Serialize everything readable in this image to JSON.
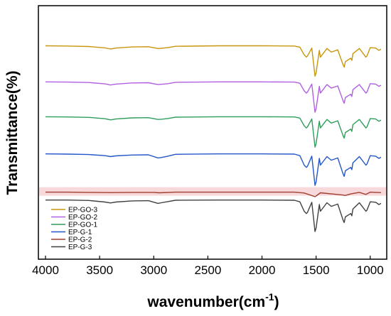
{
  "chart_data": {
    "type": "line",
    "title": "",
    "xlabel": "wavenumber(cm",
    "xlabel_sup": "-1",
    "xlabel_close": ")",
    "ylabel": "Transmittance(%)",
    "xlim": [
      4000,
      900
    ],
    "x_reversed": true,
    "y_ticks_shown": false,
    "x_ticks": [
      "4000",
      "3500",
      "3000",
      "2500",
      "2000",
      "1500",
      "1000"
    ],
    "y_unit": "offset transmittance (a.u.)",
    "ylim": [
      0,
      100
    ],
    "legend_position": "bottom-left",
    "grid": false,
    "series": [
      {
        "name": "EP-GO-3",
        "color": "#C8960C",
        "x": [
          4000,
          3800,
          3600,
          3450,
          3400,
          3350,
          3200,
          3050,
          2960,
          2930,
          2870,
          2800,
          2400,
          2000,
          1700,
          1650,
          1610,
          1590,
          1580,
          1540,
          1510,
          1500,
          1470,
          1460,
          1400,
          1360,
          1300,
          1250,
          1240,
          1230,
          1180,
          1170,
          1160,
          1100,
          1040,
          1030,
          1000,
          950,
          920,
          900
        ],
        "y": [
          91.0,
          90.9,
          90.7,
          90.1,
          89.6,
          90.0,
          90.5,
          90.6,
          89.8,
          89.9,
          90.2,
          90.8,
          91.0,
          91.0,
          90.9,
          90.4,
          87.0,
          86.0,
          86.5,
          90.0,
          77.5,
          79.0,
          89.0,
          86.0,
          89.8,
          88.2,
          89.2,
          82.5,
          81.5,
          84.0,
          85.5,
          84.5,
          87.5,
          89.8,
          86.0,
          86.5,
          90.2,
          90.0,
          89.0,
          89.5
        ]
      },
      {
        "name": "EP-GO-2",
        "color": "#B060E0",
        "x": [
          4000,
          3800,
          3600,
          3450,
          3400,
          3350,
          3200,
          3050,
          2960,
          2930,
          2870,
          2800,
          2400,
          2000,
          1700,
          1650,
          1610,
          1590,
          1580,
          1540,
          1510,
          1500,
          1470,
          1460,
          1400,
          1360,
          1300,
          1250,
          1240,
          1230,
          1180,
          1170,
          1160,
          1100,
          1040,
          1030,
          1000,
          950,
          920,
          900
        ],
        "y": [
          75.0,
          74.9,
          74.7,
          74.1,
          73.6,
          74.0,
          74.5,
          74.6,
          73.8,
          73.9,
          74.2,
          74.8,
          75.0,
          75.0,
          74.9,
          74.4,
          71.0,
          70.0,
          70.5,
          74.0,
          61.5,
          63.0,
          73.0,
          70.0,
          73.8,
          72.2,
          73.2,
          66.5,
          65.5,
          68.0,
          69.5,
          68.5,
          71.5,
          73.8,
          70.0,
          70.5,
          74.2,
          74.0,
          73.0,
          73.5
        ]
      },
      {
        "name": "EP-GO-1",
        "color": "#2E9E5B",
        "x": [
          4000,
          3800,
          3600,
          3450,
          3400,
          3350,
          3200,
          3050,
          2960,
          2930,
          2870,
          2800,
          2400,
          2000,
          1700,
          1650,
          1610,
          1590,
          1580,
          1540,
          1510,
          1500,
          1470,
          1460,
          1400,
          1360,
          1300,
          1250,
          1240,
          1230,
          1180,
          1170,
          1160,
          1100,
          1040,
          1030,
          1000,
          950,
          920,
          900
        ],
        "y": [
          59.5,
          59.4,
          59.2,
          58.6,
          58.1,
          58.5,
          59.0,
          59.1,
          58.3,
          58.4,
          58.7,
          59.3,
          59.5,
          59.5,
          59.4,
          58.9,
          55.5,
          54.5,
          55.0,
          58.5,
          46.0,
          47.5,
          57.5,
          54.5,
          58.3,
          56.7,
          57.7,
          51.0,
          50.0,
          52.5,
          54.0,
          53.0,
          56.0,
          58.3,
          54.5,
          55.0,
          58.7,
          58.5,
          57.5,
          58.0
        ]
      },
      {
        "name": "EP-G-1",
        "color": "#2456C8",
        "x": [
          4000,
          3800,
          3600,
          3450,
          3400,
          3350,
          3200,
          3050,
          2960,
          2930,
          2870,
          2800,
          2400,
          2000,
          1700,
          1650,
          1610,
          1590,
          1580,
          1540,
          1510,
          1500,
          1470,
          1460,
          1400,
          1360,
          1300,
          1250,
          1240,
          1230,
          1180,
          1170,
          1160,
          1100,
          1040,
          1030,
          1000,
          950,
          920,
          900
        ],
        "y": [
          43.0,
          42.9,
          42.7,
          42.2,
          41.8,
          42.1,
          42.5,
          42.6,
          41.2,
          41.4,
          42.0,
          42.8,
          43.0,
          43.0,
          42.9,
          42.2,
          38.0,
          37.0,
          37.5,
          42.0,
          29.0,
          30.5,
          41.0,
          38.0,
          41.8,
          40.2,
          41.2,
          34.0,
          33.0,
          35.5,
          37.0,
          36.0,
          39.0,
          41.8,
          38.0,
          38.5,
          42.2,
          42.0,
          41.0,
          41.5
        ]
      },
      {
        "name": "EP-G-2",
        "color": "#A04030",
        "x": [
          4000,
          3800,
          3600,
          3400,
          3200,
          3000,
          2950,
          2800,
          2400,
          2000,
          1700,
          1610,
          1510,
          1500,
          1460,
          1250,
          1230,
          1180,
          1100,
          1040,
          1000,
          950,
          900
        ],
        "y": [
          26.0,
          26.0,
          25.9,
          25.8,
          25.9,
          25.9,
          25.7,
          26.0,
          26.0,
          26.0,
          26.0,
          25.6,
          24.0,
          24.3,
          25.7,
          24.7,
          24.5,
          25.2,
          25.9,
          25.0,
          26.0,
          25.9,
          25.8
        ]
      },
      {
        "name": "EP-G-3",
        "color": "#404040",
        "x": [
          4000,
          3800,
          3600,
          3450,
          3400,
          3350,
          3200,
          3050,
          2960,
          2930,
          2870,
          2800,
          2400,
          2000,
          1700,
          1650,
          1610,
          1590,
          1580,
          1540,
          1510,
          1500,
          1470,
          1460,
          1400,
          1360,
          1300,
          1250,
          1240,
          1230,
          1180,
          1170,
          1160,
          1100,
          1040,
          1030,
          1000,
          950,
          920,
          900
        ],
        "y": [
          22.5,
          22.5,
          22.3,
          21.6,
          21.2,
          21.6,
          22.1,
          22.2,
          21.0,
          21.3,
          21.8,
          22.4,
          22.5,
          22.5,
          22.4,
          21.7,
          17.5,
          16.5,
          17.0,
          21.5,
          8.5,
          10.0,
          20.5,
          17.5,
          21.3,
          19.7,
          20.7,
          13.5,
          12.5,
          15.0,
          16.5,
          15.5,
          18.5,
          21.3,
          17.5,
          18.0,
          21.7,
          21.5,
          20.5,
          21.0
        ]
      }
    ],
    "highlight_band": {
      "series": "EP-G-2",
      "color": "#F7D9DC"
    }
  }
}
